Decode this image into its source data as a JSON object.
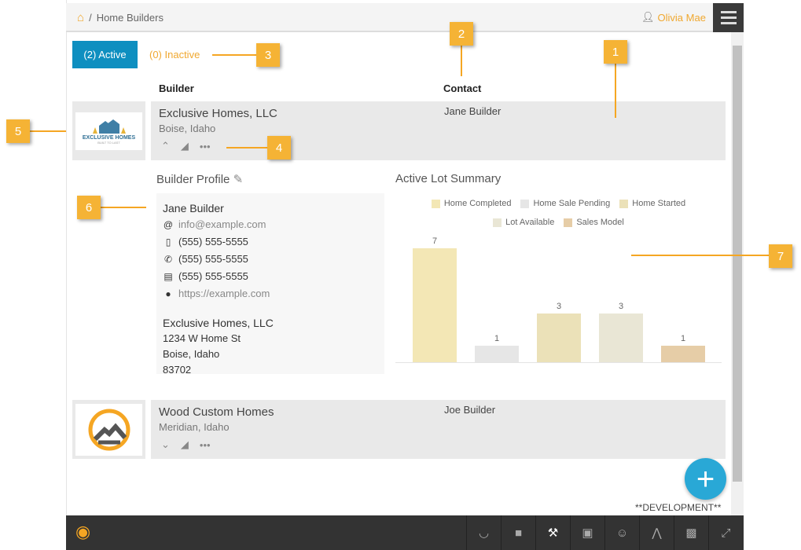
{
  "header": {
    "breadcrumb_sep": "/",
    "breadcrumb": "Home Builders",
    "user": "Olivia Mae"
  },
  "tabs": {
    "active": "(2) Active",
    "inactive": "(0) Inactive"
  },
  "columns": {
    "builder": "Builder",
    "contact": "Contact"
  },
  "builders": [
    {
      "name": "Exclusive Homes, LLC",
      "location": "Boise, Idaho",
      "contact": "Jane Builder",
      "logo_text": "EXCLUSIVE HOMES",
      "logo_sub": "BUILT TO LAST"
    },
    {
      "name": "Wood Custom Homes",
      "location": "Meridian, Idaho",
      "contact": "Joe Builder"
    }
  ],
  "profile": {
    "title": "Builder Profile",
    "name": "Jane Builder",
    "email": "info@example.com",
    "mobile": "(555) 555-5555",
    "phone": "(555) 555-5555",
    "fax": "(555) 555-5555",
    "website": "https://example.com",
    "company": "Exclusive Homes, LLC",
    "street": "1234 W Home St",
    "city": "Boise, Idaho",
    "zip": "83702"
  },
  "chart_data": {
    "type": "bar",
    "title": "Active Lot Summary",
    "categories": [
      "Home Completed",
      "Home Sale Pending",
      "Home Started",
      "Lot Available",
      "Sales Model"
    ],
    "values": [
      7,
      1,
      3,
      3,
      1
    ],
    "colors": [
      "#f3e7b5",
      "#e6e6e6",
      "#ebe1b8",
      "#e9e6d5",
      "#e6cda7"
    ],
    "legend": "top",
    "ylim": [
      0,
      7
    ]
  },
  "footer": {
    "env": "**DEVELOPMENT**"
  },
  "callouts": [
    "1",
    "2",
    "3",
    "4",
    "5",
    "6",
    "7"
  ]
}
